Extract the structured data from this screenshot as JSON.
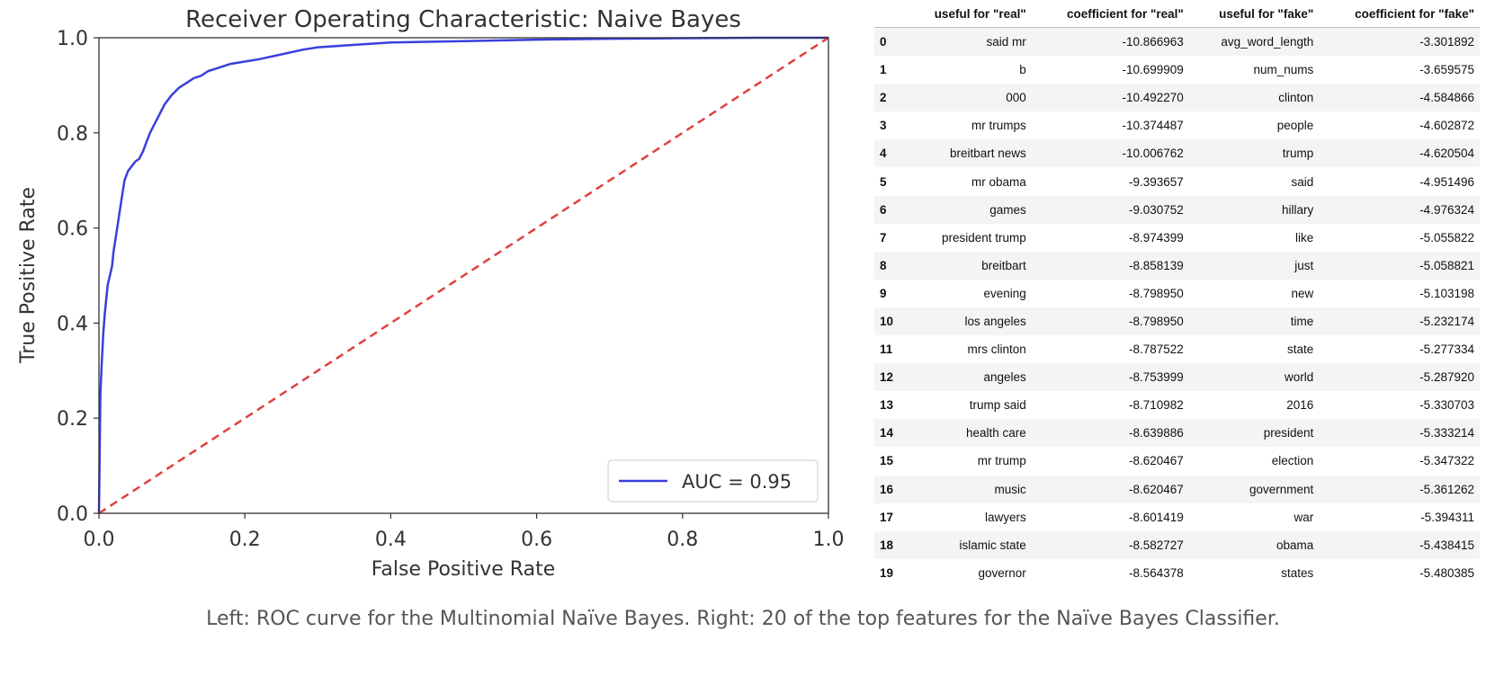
{
  "chart_data": [
    {
      "type": "line",
      "title": "Receiver Operating Characteristic: Naive Bayes",
      "xlabel": "False Positive Rate",
      "ylabel": "True Positive Rate",
      "xlim": [
        0.0,
        1.0
      ],
      "ylim": [
        0.0,
        1.0
      ],
      "xticks": [
        "0.0",
        "0.2",
        "0.4",
        "0.6",
        "0.8",
        "1.0"
      ],
      "yticks": [
        "0.0",
        "0.2",
        "0.4",
        "0.6",
        "0.8",
        "1.0"
      ],
      "grid": false,
      "legend_position": "lower-right",
      "series": [
        {
          "name": "AUC = 0.95",
          "color": "#3a3fdc",
          "style": "solid",
          "x": [
            0,
            0.002,
            0.004,
            0.006,
            0.008,
            0.01,
            0.012,
            0.015,
            0.018,
            0.02,
            0.025,
            0.03,
            0.035,
            0.04,
            0.045,
            0.05,
            0.055,
            0.06,
            0.065,
            0.07,
            0.075,
            0.08,
            0.09,
            0.1,
            0.11,
            0.12,
            0.13,
            0.14,
            0.15,
            0.16,
            0.18,
            0.2,
            0.22,
            0.25,
            0.28,
            0.3,
            0.35,
            0.4,
            0.5,
            0.6,
            0.7,
            0.8,
            0.9,
            1.0
          ],
          "y": [
            0,
            0.25,
            0.32,
            0.38,
            0.42,
            0.45,
            0.48,
            0.5,
            0.52,
            0.55,
            0.6,
            0.65,
            0.7,
            0.72,
            0.73,
            0.74,
            0.745,
            0.76,
            0.78,
            0.8,
            0.815,
            0.83,
            0.86,
            0.88,
            0.895,
            0.905,
            0.915,
            0.92,
            0.93,
            0.935,
            0.945,
            0.95,
            0.955,
            0.965,
            0.975,
            0.98,
            0.985,
            0.99,
            0.993,
            0.996,
            0.998,
            0.999,
            1.0,
            1.0
          ]
        },
        {
          "name": "",
          "color": "#e04040",
          "style": "dashed",
          "x": [
            0,
            1
          ],
          "y": [
            0,
            1
          ]
        }
      ]
    },
    {
      "type": "table",
      "columns": [
        "",
        "useful for \"real\"",
        "coefficient for \"real\"",
        "useful for \"fake\"",
        "coefficient for \"fake\""
      ],
      "rows": [
        [
          "0",
          "said mr",
          "-10.866963",
          "avg_word_length",
          "-3.301892"
        ],
        [
          "1",
          "b",
          "-10.699909",
          "num_nums",
          "-3.659575"
        ],
        [
          "2",
          "000",
          "-10.492270",
          "clinton",
          "-4.584866"
        ],
        [
          "3",
          "mr trumps",
          "-10.374487",
          "people",
          "-4.602872"
        ],
        [
          "4",
          "breitbart news",
          "-10.006762",
          "trump",
          "-4.620504"
        ],
        [
          "5",
          "mr obama",
          "-9.393657",
          "said",
          "-4.951496"
        ],
        [
          "6",
          "games",
          "-9.030752",
          "hillary",
          "-4.976324"
        ],
        [
          "7",
          "president trump",
          "-8.974399",
          "like",
          "-5.055822"
        ],
        [
          "8",
          "breitbart",
          "-8.858139",
          "just",
          "-5.058821"
        ],
        [
          "9",
          "evening",
          "-8.798950",
          "new",
          "-5.103198"
        ],
        [
          "10",
          "los angeles",
          "-8.798950",
          "time",
          "-5.232174"
        ],
        [
          "11",
          "mrs clinton",
          "-8.787522",
          "state",
          "-5.277334"
        ],
        [
          "12",
          "angeles",
          "-8.753999",
          "world",
          "-5.287920"
        ],
        [
          "13",
          "trump said",
          "-8.710982",
          "2016",
          "-5.330703"
        ],
        [
          "14",
          "health care",
          "-8.639886",
          "president",
          "-5.333214"
        ],
        [
          "15",
          "mr trump",
          "-8.620467",
          "election",
          "-5.347322"
        ],
        [
          "16",
          "music",
          "-8.620467",
          "government",
          "-5.361262"
        ],
        [
          "17",
          "lawyers",
          "-8.601419",
          "war",
          "-5.394311"
        ],
        [
          "18",
          "islamic state",
          "-8.582727",
          "obama",
          "-5.438415"
        ],
        [
          "19",
          "governor",
          "-8.564378",
          "states",
          "-5.480385"
        ]
      ]
    }
  ],
  "caption": "Left: ROC curve for the Multinomial Naïve Bayes. Right: 20 of the top features for the Naïve Bayes Classifier."
}
